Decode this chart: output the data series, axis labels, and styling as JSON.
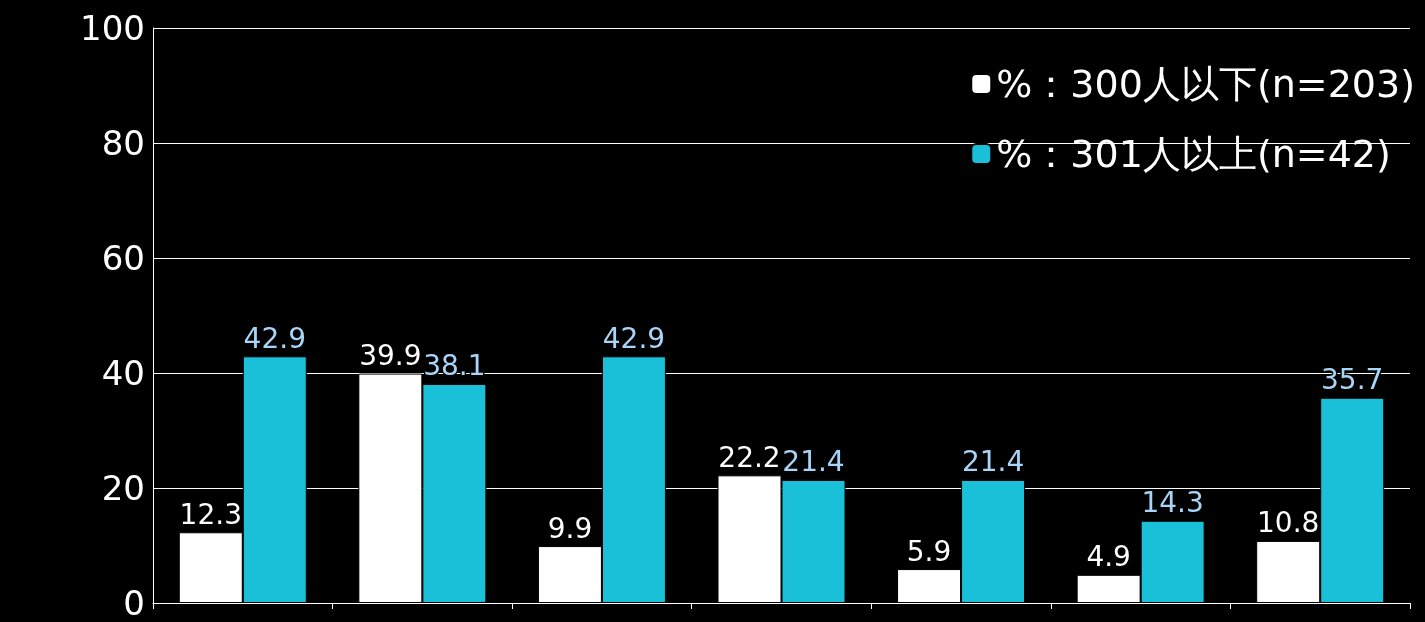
{
  "chart_data": {
    "type": "bar",
    "categories": [
      null,
      null,
      null,
      null,
      null,
      null,
      null
    ],
    "series": [
      {
        "name": "%：300人以下(n=203)",
        "color": "#ffffff",
        "values": [
          12.3,
          39.9,
          9.9,
          22.2,
          5.9,
          4.9,
          10.8
        ]
      },
      {
        "name": "%：301人以上(n=42)",
        "color": "#19c0d8",
        "values": [
          42.9,
          38.1,
          42.9,
          21.4,
          21.4,
          14.3,
          35.7
        ]
      }
    ],
    "ylim": [
      0,
      100
    ],
    "yticks": [
      0,
      20,
      40,
      60,
      80,
      100
    ],
    "grid": "y",
    "legend": "top right",
    "data_labels": true
  }
}
